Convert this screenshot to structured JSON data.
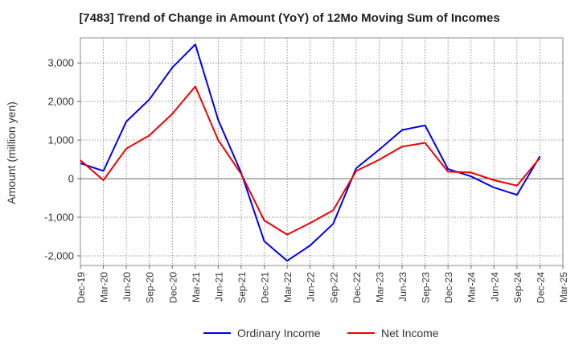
{
  "chart_data": {
    "type": "line",
    "title": "[7483]  Trend of Change in Amount (YoY) of 12Mo Moving Sum of Incomes",
    "ylabel": "Amount (million yen)",
    "xlabel": "",
    "ylim": [
      -2250,
      3650
    ],
    "yticks": [
      -2000,
      -1000,
      0,
      1000,
      2000,
      3000
    ],
    "ytick_labels": [
      "-2,000",
      "-1,000",
      "0",
      "1,000",
      "2,000",
      "3,000"
    ],
    "categories": [
      "Dec-19",
      "Mar-20",
      "Jun-20",
      "Sep-20",
      "Dec-20",
      "Mar-21",
      "Jun-21",
      "Sep-21",
      "Dec-21",
      "Mar-22",
      "Jun-22",
      "Sep-22",
      "Dec-22",
      "Mar-23",
      "Jun-23",
      "Sep-23",
      "Dec-23",
      "Mar-24",
      "Jun-24",
      "Sep-24",
      "Dec-24",
      "Mar-25"
    ],
    "series": [
      {
        "name": "Ordinary Income",
        "color": "#0000ee",
        "values": [
          400,
          200,
          1480,
          2050,
          2880,
          3480,
          1520,
          150,
          -1620,
          -2130,
          -1730,
          -1170,
          270,
          750,
          1260,
          1380,
          250,
          60,
          -230,
          -420,
          580,
          null
        ]
      },
      {
        "name": "Net Income",
        "color": "#ee0000",
        "values": [
          480,
          -40,
          780,
          1120,
          1680,
          2390,
          1000,
          120,
          -1080,
          -1450,
          -1150,
          -820,
          200,
          490,
          830,
          930,
          180,
          160,
          -40,
          -180,
          540,
          null
        ]
      }
    ],
    "grid": true,
    "legend_position": "bottom-center"
  }
}
